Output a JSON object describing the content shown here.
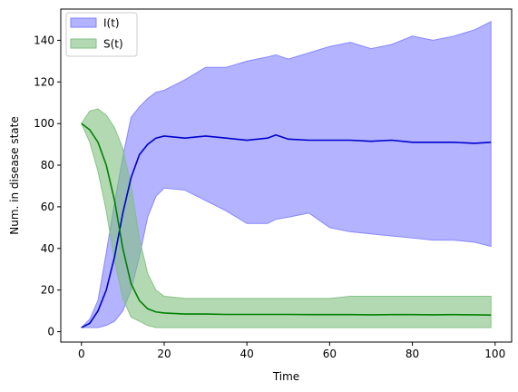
{
  "chart_data": {
    "type": "line",
    "title": "",
    "xlabel": "Time",
    "ylabel": "Num. in disease state",
    "xlim": [
      -5,
      104
    ],
    "ylim": [
      -5,
      155
    ],
    "xticks": [
      0,
      20,
      40,
      60,
      80,
      100
    ],
    "yticks": [
      0,
      20,
      40,
      60,
      80,
      100,
      120,
      140
    ],
    "grid": false,
    "legend_position": "top-left",
    "colors": {
      "I_line": "#0000cc",
      "I_fill": "#8080ff",
      "S_line": "#008000",
      "S_fill": "#80c080"
    },
    "series": [
      {
        "name": "I(t)",
        "x": [
          0,
          2,
          4,
          6,
          8,
          10,
          12,
          14,
          16,
          18,
          20,
          25,
          30,
          35,
          40,
          45,
          47,
          50,
          55,
          60,
          65,
          70,
          75,
          80,
          85,
          90,
          95,
          99
        ],
        "mean": [
          2,
          4,
          10,
          20,
          36,
          57,
          74,
          85,
          90,
          93,
          94,
          93,
          94,
          93,
          92,
          93,
          94.5,
          92.5,
          92,
          92,
          92,
          91.5,
          92,
          91,
          91,
          91,
          90.5,
          91
        ],
        "upper": [
          2,
          6,
          15,
          38,
          62,
          84,
          103,
          108,
          112,
          115,
          116,
          121,
          127,
          127,
          130,
          132,
          133,
          131,
          134,
          137,
          139,
          136,
          138,
          142,
          140,
          142,
          145,
          149
        ],
        "lower": [
          2,
          2,
          2,
          3,
          5,
          10,
          20,
          36,
          55,
          65,
          69,
          68,
          63,
          58,
          52,
          52,
          54,
          55,
          57,
          50,
          48,
          47,
          46,
          45,
          44,
          44,
          43,
          41
        ]
      },
      {
        "name": "S(t)",
        "x": [
          0,
          2,
          4,
          6,
          8,
          10,
          12,
          14,
          16,
          18,
          20,
          25,
          30,
          35,
          40,
          45,
          50,
          55,
          60,
          65,
          70,
          75,
          80,
          85,
          90,
          95,
          99
        ],
        "mean": [
          100,
          97,
          91,
          80,
          63,
          40,
          23,
          15,
          11,
          9.5,
          9,
          8.5,
          8.5,
          8.3,
          8.3,
          8.3,
          8.3,
          8.2,
          8.2,
          8.2,
          8.1,
          8.2,
          8.2,
          8.1,
          8.2,
          8.1,
          8
        ],
        "upper": [
          100,
          106,
          107,
          104,
          98,
          88,
          70,
          45,
          28,
          20,
          17,
          16,
          16,
          16,
          16,
          16,
          16,
          16,
          16,
          17,
          17,
          17,
          17,
          17,
          17,
          17,
          17
        ],
        "lower": [
          100,
          91,
          77,
          58,
          34,
          16,
          7,
          5,
          3,
          2,
          2,
          2,
          2,
          2,
          2,
          2,
          2,
          2,
          2,
          2,
          2,
          2,
          2,
          2,
          2,
          2,
          2
        ]
      }
    ]
  }
}
